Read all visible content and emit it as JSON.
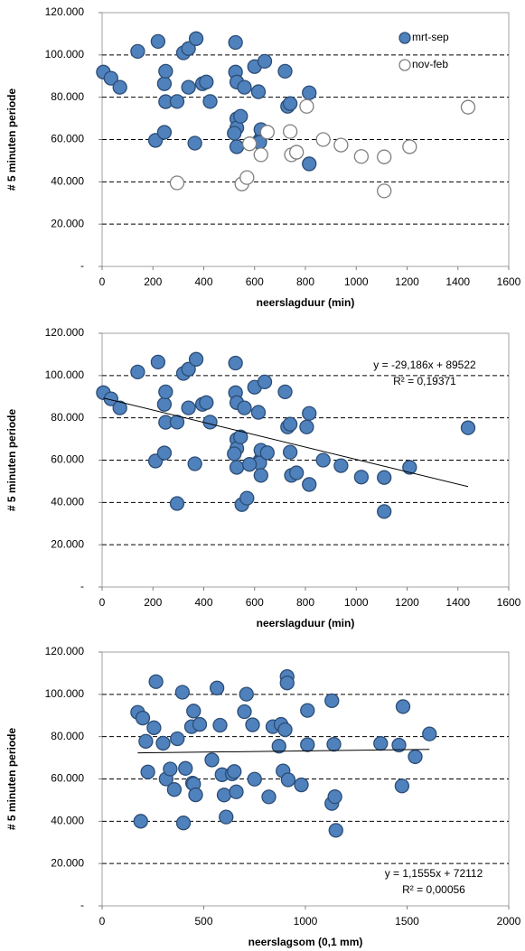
{
  "chart_data": [
    {
      "type": "scatter",
      "x_label": "neerslagduur (min)",
      "y_label": "# 5 minuten periode",
      "xlim": [
        0,
        1600
      ],
      "xticks": [
        0,
        200,
        400,
        600,
        800,
        1000,
        1200,
        1400,
        1600
      ],
      "ylim": [
        0,
        120000
      ],
      "yticks": [
        {
          "value": 0,
          "label": "-"
        },
        {
          "value": 20000,
          "label": "20.000"
        },
        {
          "value": 40000,
          "label": "40.000"
        },
        {
          "value": 60000,
          "label": "60.000"
        },
        {
          "value": 80000,
          "label": "80.000"
        },
        {
          "value": 100000,
          "label": "100.000"
        },
        {
          "value": 120000,
          "label": "120.000"
        }
      ],
      "grid": true,
      "legend": "upper right",
      "series": [
        {
          "name": "mrt-sep",
          "color": "#4f81bd",
          "edgecolor": "#2c4d75",
          "x": [
            5,
            35,
            70,
            140,
            220,
            210,
            250,
            245,
            250,
            245,
            295,
            320,
            340,
            370,
            340,
            365,
            395,
            410,
            425,
            525,
            525,
            530,
            530,
            530,
            530,
            520,
            545,
            560,
            600,
            615,
            640,
            620,
            630,
            625,
            720,
            730,
            740,
            815,
            815,
            620
          ],
          "values": [
            91900,
            89000,
            84700,
            101700,
            106400,
            59600,
            77900,
            86400,
            92300,
            63400,
            78000,
            101000,
            103000,
            107700,
            84700,
            58300,
            86400,
            87200,
            78000,
            105900,
            91900,
            87200,
            69800,
            65500,
            56600,
            63000,
            71000,
            84700,
            94500,
            82600,
            97000,
            59600,
            63000,
            64700,
            92300,
            75700,
            77000,
            48500,
            82100,
            58700
          ]
        },
        {
          "name": "nov-feb",
          "color": "#ffffff",
          "edgecolor": "#7f7f7f",
          "x": [
            295,
            550,
            570,
            580,
            625,
            650,
            740,
            745,
            765,
            805,
            870,
            940,
            1020,
            1110,
            1110,
            1210,
            1440
          ],
          "values": [
            39500,
            39000,
            42000,
            58000,
            52800,
            63500,
            63800,
            52800,
            54000,
            75700,
            60000,
            57400,
            52000,
            51800,
            35700,
            56600,
            75300
          ]
        }
      ]
    },
    {
      "type": "scatter",
      "x_label": "neerslagduur (min)",
      "y_label": "# 5 minuten periode",
      "xlim": [
        0,
        1600
      ],
      "xticks": [
        0,
        200,
        400,
        600,
        800,
        1000,
        1200,
        1400,
        1600
      ],
      "ylim": [
        0,
        120000
      ],
      "yticks": [
        {
          "value": 0,
          "label": "-"
        },
        {
          "value": 20000,
          "label": "20.000"
        },
        {
          "value": 40000,
          "label": "40.000"
        },
        {
          "value": 60000,
          "label": "60.000"
        },
        {
          "value": 80000,
          "label": "80.000"
        },
        {
          "value": 100000,
          "label": "100.000"
        },
        {
          "value": 120000,
          "label": "120.000"
        }
      ],
      "grid": true,
      "series": [
        {
          "color": "#4f81bd",
          "edgecolor": "#2c4d75",
          "x": [
            5,
            35,
            70,
            140,
            220,
            210,
            250,
            245,
            250,
            245,
            295,
            320,
            340,
            370,
            340,
            365,
            395,
            410,
            425,
            525,
            525,
            530,
            530,
            530,
            530,
            520,
            545,
            560,
            600,
            615,
            640,
            620,
            630,
            625,
            720,
            730,
            740,
            815,
            815,
            620,
            295,
            550,
            570,
            580,
            625,
            650,
            740,
            745,
            765,
            805,
            870,
            940,
            1020,
            1110,
            1110,
            1210,
            1440
          ],
          "values": [
            91900,
            89000,
            84700,
            101700,
            106400,
            59600,
            77900,
            86400,
            92300,
            63400,
            78000,
            101000,
            103000,
            107700,
            84700,
            58300,
            86400,
            87200,
            78000,
            105900,
            91900,
            87200,
            69800,
            65500,
            56600,
            63000,
            71000,
            84700,
            94500,
            82600,
            97000,
            59600,
            63000,
            64700,
            92300,
            75700,
            77000,
            48500,
            82100,
            58700,
            39500,
            39000,
            42000,
            58000,
            52800,
            63500,
            63800,
            52800,
            54000,
            75700,
            60000,
            57400,
            52000,
            51800,
            35700,
            56600,
            75300
          ]
        }
      ],
      "trendline": {
        "slope": -29.186,
        "intercept": 89522,
        "equation": "y = -29,186x + 89522",
        "r_squared": "R² = 0,19371"
      }
    },
    {
      "type": "scatter",
      "x_label": "neerslagsom (0,1 mm)",
      "y_label": "# 5 minuten periode",
      "xlim": [
        0,
        2000
      ],
      "xticks": [
        0,
        500,
        1000,
        1500,
        2000
      ],
      "ylim": [
        0,
        120000
      ],
      "yticks": [
        {
          "value": 0,
          "label": "-"
        },
        {
          "value": 20000,
          "label": "20.000"
        },
        {
          "value": 40000,
          "label": "40.000"
        },
        {
          "value": 60000,
          "label": "60.000"
        },
        {
          "value": 80000,
          "label": "80.000"
        },
        {
          "value": 100000,
          "label": "100.000"
        },
        {
          "value": 120000,
          "label": "120.000"
        }
      ],
      "grid": true,
      "series": [
        {
          "color": "#4f81bd",
          "edgecolor": "#2c4d75",
          "x": [
            175,
            200,
            265,
            255,
            215,
            300,
            190,
            225,
            315,
            335,
            355,
            395,
            410,
            400,
            440,
            450,
            445,
            450,
            460,
            480,
            540,
            565,
            580,
            590,
            600,
            610,
            640,
            650,
            660,
            700,
            710,
            740,
            750,
            820,
            840,
            870,
            880,
            890,
            910,
            910,
            900,
            915,
            980,
            1010,
            1010,
            1130,
            1140,
            1130,
            1145,
            1150,
            1370,
            1460,
            1480,
            1475,
            1540,
            1610,
            370
          ],
          "values": [
            91500,
            88800,
            106000,
            84200,
            77800,
            76900,
            40000,
            63300,
            60000,
            64700,
            55000,
            101000,
            65000,
            39200,
            84700,
            92100,
            58000,
            57600,
            52500,
            85800,
            69000,
            103000,
            85400,
            62000,
            52400,
            42000,
            62400,
            63500,
            53900,
            91800,
            100100,
            85600,
            59900,
            51500,
            84700,
            75500,
            85800,
            63800,
            108400,
            105400,
            83300,
            59600,
            57200,
            92400,
            76200,
            97000,
            76400,
            48400,
            51600,
            35700,
            76800,
            76000,
            94200,
            56700,
            70500,
            81300,
            79000
          ]
        }
      ],
      "trendline": {
        "slope": 1.1555,
        "intercept": 72112,
        "equation": "y = 1,1555x + 72112",
        "r_squared": "R² = 0,00056"
      }
    }
  ]
}
